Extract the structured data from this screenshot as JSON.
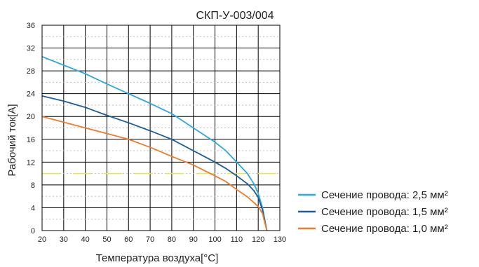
{
  "chart_data": {
    "type": "line",
    "title": "СКП-У-003/004",
    "xlabel": "Температура воздуха[°C]",
    "ylabel": "Рабочий ток[A]",
    "xlim": [
      20,
      130
    ],
    "ylim": [
      0,
      36
    ],
    "x_ticks": [
      "20",
      "30",
      "40",
      "50",
      "60",
      "70",
      "80",
      "90",
      "100",
      "110",
      "120",
      "130"
    ],
    "y_ticks": [
      "0",
      "4",
      "8",
      "12",
      "16",
      "20",
      "24",
      "28",
      "32",
      "36"
    ],
    "grid": true,
    "legend_position": "bottom-right",
    "series": [
      {
        "name": "Сечение провода:  2,5 мм²",
        "color": "#29a9e0",
        "x": [
          20,
          30,
          40,
          50,
          60,
          70,
          80,
          90,
          100,
          105,
          110,
          115,
          118,
          120,
          122,
          124
        ],
        "y": [
          30.5,
          29.0,
          27.5,
          25.7,
          24.0,
          22.3,
          20.5,
          18.0,
          15.5,
          14.0,
          12.0,
          10.0,
          8.2,
          6.5,
          4.0,
          0
        ]
      },
      {
        "name": "Сечение провода:  1,5 мм²",
        "color": "#1b5f9a",
        "x": [
          20,
          30,
          40,
          50,
          60,
          70,
          80,
          90,
          100,
          105,
          110,
          115,
          118,
          120,
          122,
          124
        ],
        "y": [
          23.6,
          22.7,
          21.6,
          20.2,
          18.9,
          17.5,
          16.0,
          14.0,
          12.0,
          10.9,
          9.6,
          8.2,
          7.0,
          5.8,
          3.6,
          0
        ]
      },
      {
        "name": "Сечение провода:  1,0 мм²",
        "color": "#f07b2a",
        "x": [
          20,
          30,
          40,
          50,
          60,
          70,
          80,
          90,
          100,
          105,
          110,
          115,
          118,
          120,
          122,
          124
        ],
        "y": [
          20.0,
          19.0,
          18.0,
          17.0,
          16.0,
          14.6,
          13.0,
          11.5,
          9.6,
          8.6,
          7.2,
          5.9,
          4.9,
          4.2,
          3.0,
          0
        ]
      }
    ],
    "reference_line": {
      "y": 10,
      "color": "#e8e64a"
    }
  }
}
